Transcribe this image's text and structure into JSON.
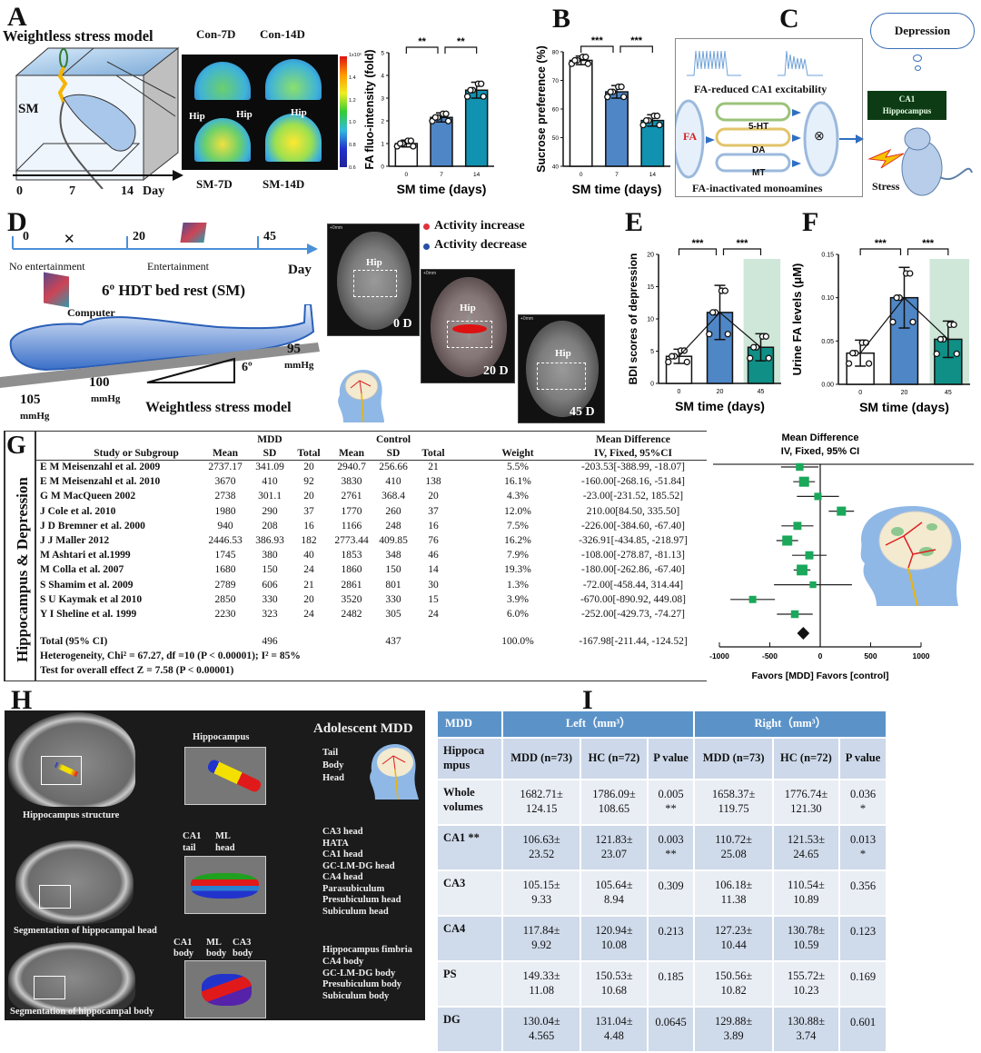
{
  "panel_labels": {
    "a": "A",
    "b": "B",
    "c": "C",
    "d": "D",
    "e": "E",
    "f": "F",
    "g": "G",
    "h": "H",
    "i": "I"
  },
  "panel_a": {
    "title": "Weightless stress model",
    "cage_label": "SM",
    "timeline": [
      "0",
      "7",
      "14",
      "Day"
    ],
    "imaging": {
      "con7": "Con-7D",
      "con14": "Con-14D",
      "sm7": "SM-7D",
      "sm14": "SM-14D",
      "hip": "Hip"
    },
    "colorbar_ticks": [
      "1x10⁶",
      "1.4",
      "1.2",
      "1.0",
      "0.8",
      "0.6"
    ]
  },
  "panel_c": {
    "excitability": "FA-reduced CA1 excitability",
    "monoamines": "FA-inactivated monoamines",
    "fa": "FA",
    "transmitters": [
      "5-HT",
      "DA",
      "MT"
    ],
    "inhibit_symbol": "⊗",
    "thought": "Depression",
    "ca1": "CA1",
    "hippocampus": "Hippocampus",
    "stress": "Stress"
  },
  "panel_d": {
    "timeline": [
      "0",
      "20",
      "45"
    ],
    "day": "Day",
    "no_entertainment": "No entertainment",
    "entertainment": "Entertainment",
    "bed_rest": "6º HDT bed rest (SM)",
    "computer": "Computer",
    "pressures": [
      {
        "value": "105",
        "unit": "mmHg"
      },
      {
        "value": "100",
        "unit": "mmHg"
      },
      {
        "value": "95",
        "unit": "mmHg"
      }
    ],
    "angle": "6º",
    "model": "Weightless stress model",
    "legend": [
      "Activity increase",
      "Activity decrease"
    ],
    "legend_colors": [
      "#e0303a",
      "#2a4fa8"
    ],
    "scans": [
      "0 D",
      "20 D",
      "45 D"
    ],
    "hip": "Hip",
    "mm": "+0mm"
  },
  "panel_g": {
    "side_label": "Hippocampus & Depression",
    "group_headers": {
      "mdd": "MDD",
      "control": "Control",
      "md": "Mean Difference"
    },
    "columns": [
      "Study or Subgroup",
      "Mean",
      "SD",
      "Total",
      "Mean",
      "SD",
      "Total",
      "Weight",
      "IV, Fixed,  95%CI"
    ],
    "rows": [
      [
        "E M Meisenzahl et al. 2009",
        "2737.17",
        "341.09",
        "20",
        "2940.7",
        "256.66",
        "21",
        "5.5%",
        "-203.53[-388.99, -18.07]"
      ],
      [
        "E M Meisenzahl et al. 2010",
        "3670",
        "410",
        "92",
        "3830",
        "410",
        "138",
        "16.1%",
        "-160.00[-268.16, -51.84]"
      ],
      [
        "G M MacQueen 2002",
        "2738",
        "301.1",
        "20",
        "2761",
        "368.4",
        "20",
        "4.3%",
        "-23.00[-231.52, 185.52]"
      ],
      [
        "J Cole et al. 2010",
        "1980",
        "290",
        "37",
        "1770",
        "260",
        "37",
        "12.0%",
        "210.00[84.50, 335.50]"
      ],
      [
        "J D Bremner et al. 2000",
        "940",
        "208",
        "16",
        "1166",
        "248",
        "16",
        "7.5%",
        "-226.00[-384.60, -67.40]"
      ],
      [
        "J J Maller 2012",
        "2446.53",
        "386.93",
        "182",
        "2773.44",
        "409.85",
        "76",
        "16.2%",
        "-326.91[-434.85, -218.97]"
      ],
      [
        "M Ashtari et al.1999",
        "1745",
        "380",
        "40",
        "1853",
        "348",
        "46",
        "7.9%",
        "-108.00[-278.87, -81.13]"
      ],
      [
        "M Colla et al. 2007",
        "1680",
        "150",
        "24",
        "1860",
        "150",
        "14",
        "19.3%",
        "-180.00[-262.86, -67.40]"
      ],
      [
        "S Shamim et al. 2009",
        "2789",
        "606",
        "21",
        "2861",
        "801",
        "30",
        "1.3%",
        "-72.00[-458.44, 314.44]"
      ],
      [
        "S U Kaymak et al 2010",
        "2850",
        "330",
        "20",
        "3520",
        "330",
        "15",
        "3.9%",
        "-670.00[-890.92, 449.08]"
      ],
      [
        "Y I Sheline et al. 1999",
        "2230",
        "323",
        "24",
        "2482",
        "305",
        "24",
        "6.0%",
        "-252.00[-429.73, -74.27]"
      ]
    ],
    "total_row": {
      "label": "Total (95% CI)",
      "mdd_total": "496",
      "ctrl_total": "437",
      "weight": "100.0%",
      "md": "-167.98[-211.44, -124.52]"
    },
    "heterogeneity": "Heterogeneity, Chi² = 67.27, df =10 (P < 0.00001); I² = 85%",
    "overall": "Test for overall effect Z = 7.58 (P < 0.00001)"
  },
  "panel_h": {
    "title": "Adolescent MDD",
    "hippocampus": "Hippocampus",
    "parts": [
      "Tail",
      "Body",
      "Head"
    ],
    "structure": "Hippocampus structure",
    "head_seg": "Segmentation of hippocampal head",
    "body_seg": "Segmentation of hippocampal body",
    "head_top": [
      [
        "CA1",
        "tail"
      ],
      [
        "ML",
        "head"
      ]
    ],
    "head_labels": [
      "CA3 head",
      "HATA",
      "CA1 head",
      "GC-LM-DG head",
      "CA4 head",
      "Parasubiculum",
      "Presubiculum  head",
      "Subiculum head"
    ],
    "body_top": [
      [
        "CA1",
        "body"
      ],
      [
        "ML",
        "body"
      ],
      [
        "CA3",
        "body"
      ]
    ],
    "body_labels": [
      "Hippocampus fimbria",
      "CA4 body",
      "GC-LM-DG body",
      "Presubiculum body",
      "Subiculum body"
    ]
  },
  "panel_i": {
    "header": [
      "MDD",
      "Left（mm³）",
      "Right（mm³）"
    ],
    "subheader": [
      "Hippoca mpus",
      "MDD (n=73)",
      "HC (n=72)",
      "P value",
      "MDD (n=73)",
      "HC (n=72)",
      "P value"
    ],
    "rows": [
      {
        "name": "Whole volumes",
        "cells": [
          [
            "1682.71±",
            "124.15"
          ],
          [
            "1786.09±",
            "108.65"
          ],
          [
            "0.005",
            "**"
          ],
          [
            "1658.37±",
            "119.75"
          ],
          [
            "1776.74±",
            "121.30"
          ],
          [
            "0.036",
            "*"
          ]
        ]
      },
      {
        "name": "CA1 **",
        "cells": [
          [
            "106.63±",
            "23.52"
          ],
          [
            "121.83±",
            "23.07"
          ],
          [
            "0.003",
            "**"
          ],
          [
            "110.72±",
            "25.08"
          ],
          [
            "121.53±",
            "24.65"
          ],
          [
            "0.013",
            "*"
          ]
        ]
      },
      {
        "name": "CA3",
        "cells": [
          [
            "105.15±",
            "9.33"
          ],
          [
            "105.64±",
            "8.94"
          ],
          [
            "0.309",
            ""
          ],
          [
            "106.18±",
            "11.38"
          ],
          [
            "110.54±",
            "10.89"
          ],
          [
            "0.356",
            ""
          ]
        ]
      },
      {
        "name": "CA4",
        "cells": [
          [
            "117.84±",
            "9.92"
          ],
          [
            "120.94±",
            "10.08"
          ],
          [
            "0.213",
            ""
          ],
          [
            "127.23±",
            "10.44"
          ],
          [
            "130.78±",
            "10.59"
          ],
          [
            "0.123",
            ""
          ]
        ]
      },
      {
        "name": "PS",
        "cells": [
          [
            "149.33±",
            "11.08"
          ],
          [
            "150.53±",
            "10.68"
          ],
          [
            "0.185",
            ""
          ],
          [
            "150.56±",
            "10.82"
          ],
          [
            "155.72±",
            "10.23"
          ],
          [
            "0.169",
            ""
          ]
        ]
      },
      {
        "name": "DG",
        "cells": [
          [
            "130.04±",
            "4.565"
          ],
          [
            "131.04±",
            "4.48"
          ],
          [
            "0.0645",
            ""
          ],
          [
            "129.88±",
            "3.89"
          ],
          [
            "130.88±",
            "3.74"
          ],
          [
            "0.601",
            ""
          ]
        ]
      }
    ]
  },
  "chart_data": [
    {
      "id": "A",
      "type": "bar",
      "title": "",
      "xlabel": "SM time (days)",
      "ylabel": "FA fluo-intensity (fold)",
      "categories": [
        "0",
        "7",
        "14"
      ],
      "values": [
        1.0,
        2.15,
        3.35
      ],
      "errors": [
        0.15,
        0.2,
        0.35
      ],
      "colors": [
        "#ffffff",
        "#4f86c6",
        "#1192b0"
      ],
      "ylim": [
        0,
        5
      ],
      "yticks": [
        "0",
        "1",
        "2",
        "3",
        "4",
        "5"
      ],
      "significance": [
        {
          "from": 0,
          "to": 1,
          "label": "**"
        },
        {
          "from": 1,
          "to": 2,
          "label": "**"
        }
      ]
    },
    {
      "id": "B",
      "type": "bar",
      "title": "",
      "xlabel": "SM time (days)",
      "ylabel": "Sucrose preference (%)",
      "categories": [
        "0",
        "7",
        "14"
      ],
      "values": [
        77,
        66,
        56
      ],
      "errors": [
        1.5,
        2.2,
        2
      ],
      "colors": [
        "#ffffff",
        "#4f86c6",
        "#1192b0"
      ],
      "ylim": [
        40,
        80
      ],
      "yticks": [
        "40",
        "50",
        "60",
        "70",
        "80"
      ],
      "significance": [
        {
          "from": 0,
          "to": 1,
          "label": "***"
        },
        {
          "from": 1,
          "to": 2,
          "label": "***"
        }
      ]
    },
    {
      "id": "E",
      "type": "bar",
      "title": "",
      "xlabel": "SM time (days)",
      "ylabel": "BDI scores of depression",
      "categories": [
        "0",
        "20",
        "45"
      ],
      "values": [
        4.2,
        11,
        5.6
      ],
      "errors": [
        1.1,
        4.2,
        2.1
      ],
      "colors": [
        "#ffffff",
        "#4f86c6",
        "#0f8f85"
      ],
      "ylim": [
        0,
        20
      ],
      "yticks": [
        "0",
        "5",
        "10",
        "15",
        "20"
      ],
      "highlight_category": "45",
      "trend_line": true,
      "significance": [
        {
          "from": 0,
          "to": 1,
          "label": "***"
        },
        {
          "from": 1,
          "to": 2,
          "label": "***"
        }
      ]
    },
    {
      "id": "F",
      "type": "bar",
      "title": "",
      "xlabel": "SM time (days)",
      "ylabel": "Urine FA levels (μM)",
      "categories": [
        "0",
        "20",
        "45"
      ],
      "values": [
        0.036,
        0.1,
        0.052
      ],
      "errors": [
        0.015,
        0.035,
        0.021
      ],
      "colors": [
        "#ffffff",
        "#4f86c6",
        "#0f8f85"
      ],
      "ylim": [
        0,
        0.15
      ],
      "yticks": [
        "0.00",
        "0.05",
        "0.10",
        "0.15"
      ],
      "highlight_category": "45",
      "trend_line": true,
      "significance": [
        {
          "from": 0,
          "to": 1,
          "label": "***"
        },
        {
          "from": 1,
          "to": 2,
          "label": "***"
        }
      ]
    },
    {
      "id": "G",
      "type": "forest",
      "title": [
        "Mean Difference",
        "IV, Fixed, 95% CI"
      ],
      "xlabel": "Favors [MDD] Favors [control]",
      "xlim": [
        -1000,
        1000
      ],
      "xticks": [
        "-1000",
        "-500",
        "0",
        "500",
        "1000"
      ],
      "points": [
        {
          "md": -203.53,
          "lo": -388.99,
          "weight": 5.5
        },
        {
          "md": -160.0,
          "lo": -268.16,
          "weight": 16.1
        },
        {
          "md": -23.0,
          "lo": -231.52,
          "weight": 4.3
        },
        {
          "md": 210.0,
          "lo": 84.5,
          "weight": 12.0
        },
        {
          "md": -226.0,
          "lo": -384.6,
          "weight": 7.5
        },
        {
          "md": -326.91,
          "lo": -434.85,
          "weight": 16.2
        },
        {
          "md": -108.0,
          "lo": -278.87,
          "weight": 7.9
        },
        {
          "md": -180.0,
          "lo": -262.86,
          "weight": 19.3
        },
        {
          "md": -72.0,
          "lo": -458.44,
          "weight": 1.3
        },
        {
          "md": -670.0,
          "lo": -890.92,
          "weight": 3.9
        },
        {
          "md": -252.0,
          "lo": -429.73,
          "weight": 6.0
        }
      ],
      "total": {
        "md": -167.98,
        "lo": -211.44,
        "hi": -124.52
      },
      "marker_color": "#1aa85a"
    }
  ]
}
